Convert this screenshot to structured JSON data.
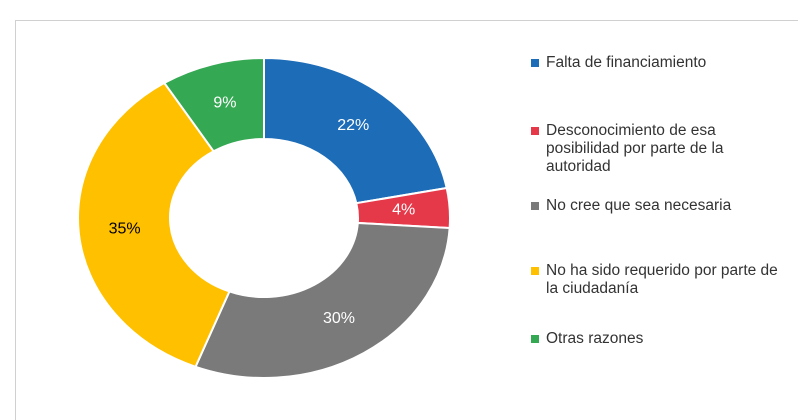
{
  "chart_data": {
    "type": "donut",
    "categories": [
      "Falta de financiamiento",
      "Desconocimiento de esa posibilidad por parte de la autoridad",
      "No cree que sea necesaria",
      "No ha sido requerido por parte de la ciudadanía",
      "Otras razones"
    ],
    "values": [
      22,
      4,
      30,
      35,
      9
    ],
    "value_labels": [
      "22%",
      "4%",
      "30%",
      "35%",
      "9%"
    ],
    "colors": [
      "#1c6cb8",
      "#e5394a",
      "#7a7a7a",
      "#ffc000",
      "#34a853"
    ],
    "label_colors": [
      "#ffffff",
      "#ffffff",
      "#ffffff",
      "#000000",
      "#ffffff"
    ],
    "legend": "right"
  }
}
